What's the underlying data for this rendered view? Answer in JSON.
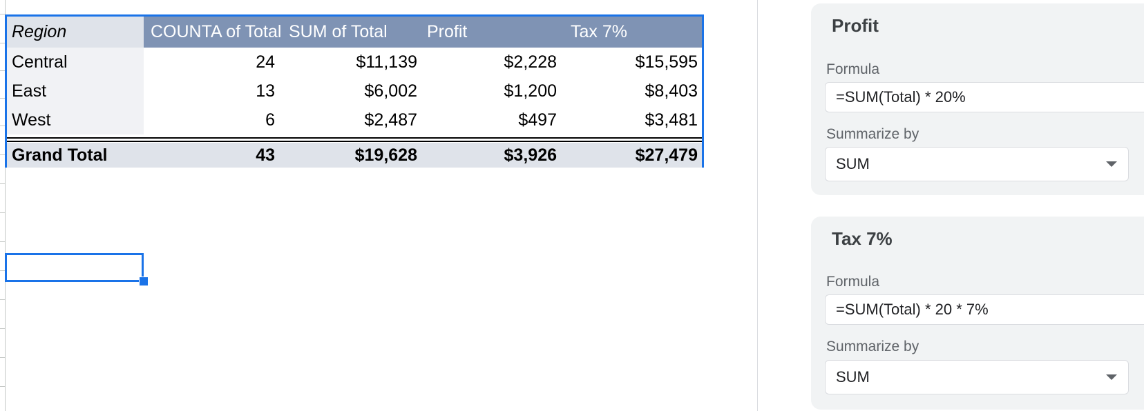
{
  "pivot": {
    "headers": {
      "region": "Region",
      "count": "COUNTA of Total",
      "sum": "SUM of Total",
      "profit": "Profit",
      "tax": "Tax 7%"
    },
    "rows": [
      {
        "region": "Central",
        "count": "24",
        "sum": "$11,139",
        "profit": "$2,228",
        "tax": "$15,595"
      },
      {
        "region": "East",
        "count": "13",
        "sum": "$6,002",
        "profit": "$1,200",
        "tax": "$8,403"
      },
      {
        "region": "West",
        "count": "6",
        "sum": "$2,487",
        "profit": "$497",
        "tax": "$3,481"
      }
    ],
    "total": {
      "region": "Grand Total",
      "count": "43",
      "sum": "$19,628",
      "profit": "$3,926",
      "tax": "$27,479"
    }
  },
  "panel": {
    "fields": [
      {
        "title": "Profit",
        "formula_label": "Formula",
        "formula": "=SUM(Total) * 20%",
        "summarize_label": "Summarize by",
        "summarize_value": "SUM"
      },
      {
        "title": "Tax 7%",
        "formula_label": "Formula",
        "formula": "=SUM(Total) * 20 * 7%",
        "summarize_label": "Summarize by",
        "summarize_value": "SUM"
      }
    ]
  },
  "colors": {
    "selection": "#1a73e8",
    "header_bg": "#7f93b4",
    "total_bg": "#dfe3ea",
    "panel_card_bg": "#f1f3f4"
  }
}
